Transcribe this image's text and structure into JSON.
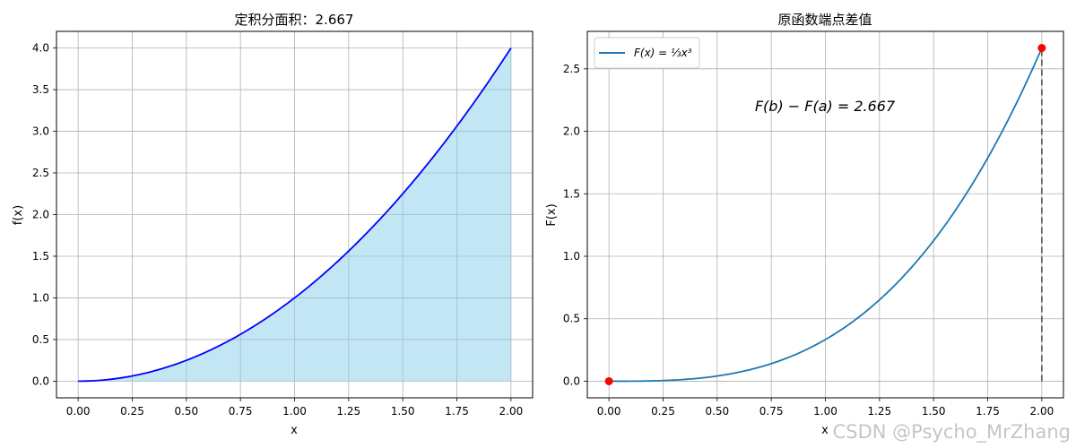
{
  "watermark": "CSDN @Psycho_MrZhang",
  "chart_data": [
    {
      "type": "area",
      "title": "定积分面积：2.667",
      "xlabel": "x",
      "ylabel": "f(x)",
      "function": "x^2",
      "x_range": [
        0,
        2
      ],
      "xlim": [
        -0.1,
        2.1
      ],
      "ylim": [
        -0.2,
        4.2
      ],
      "xticks": [
        "0.00",
        "0.25",
        "0.50",
        "0.75",
        "1.00",
        "1.25",
        "1.50",
        "1.75",
        "2.00"
      ],
      "yticks": [
        "0.0",
        "0.5",
        "1.0",
        "1.5",
        "2.0",
        "2.5",
        "3.0",
        "3.5",
        "4.0"
      ],
      "x": [
        0,
        0.25,
        0.5,
        0.75,
        1.0,
        1.25,
        1.5,
        1.75,
        2.0
      ],
      "y": [
        0,
        0.0625,
        0.25,
        0.5625,
        1.0,
        1.5625,
        2.25,
        3.0625,
        4.0
      ],
      "line_color": "#0000ff",
      "fill_color": "#87ceeb",
      "grid": true
    },
    {
      "type": "line",
      "title": "原函数端点差值",
      "xlabel": "x",
      "ylabel": "F(x)",
      "function": "x^3/3",
      "x_range": [
        0,
        2
      ],
      "xlim": [
        -0.1,
        2.1
      ],
      "ylim": [
        -0.133,
        2.8
      ],
      "xticks": [
        "0.00",
        "0.25",
        "0.50",
        "0.75",
        "1.00",
        "1.25",
        "1.50",
        "1.75",
        "2.00"
      ],
      "yticks": [
        "0.0",
        "0.5",
        "1.0",
        "1.5",
        "2.0",
        "2.5"
      ],
      "x": [
        0,
        0.25,
        0.5,
        0.75,
        1.0,
        1.25,
        1.5,
        1.75,
        2.0
      ],
      "y": [
        0,
        0.0052,
        0.0417,
        0.1406,
        0.3333,
        0.651,
        1.125,
        1.7865,
        2.6667
      ],
      "series": [
        {
          "name": "F(x) = ⅓x³",
          "color": "#1f77b4"
        }
      ],
      "endpoints": [
        {
          "x": 0,
          "y": 0
        },
        {
          "x": 2,
          "y": 2.667
        }
      ],
      "endpoint_color": "#ff0000",
      "annotation": "F(b) − F(a) = 2.667",
      "legend_position": "upper-left",
      "grid": true
    }
  ]
}
